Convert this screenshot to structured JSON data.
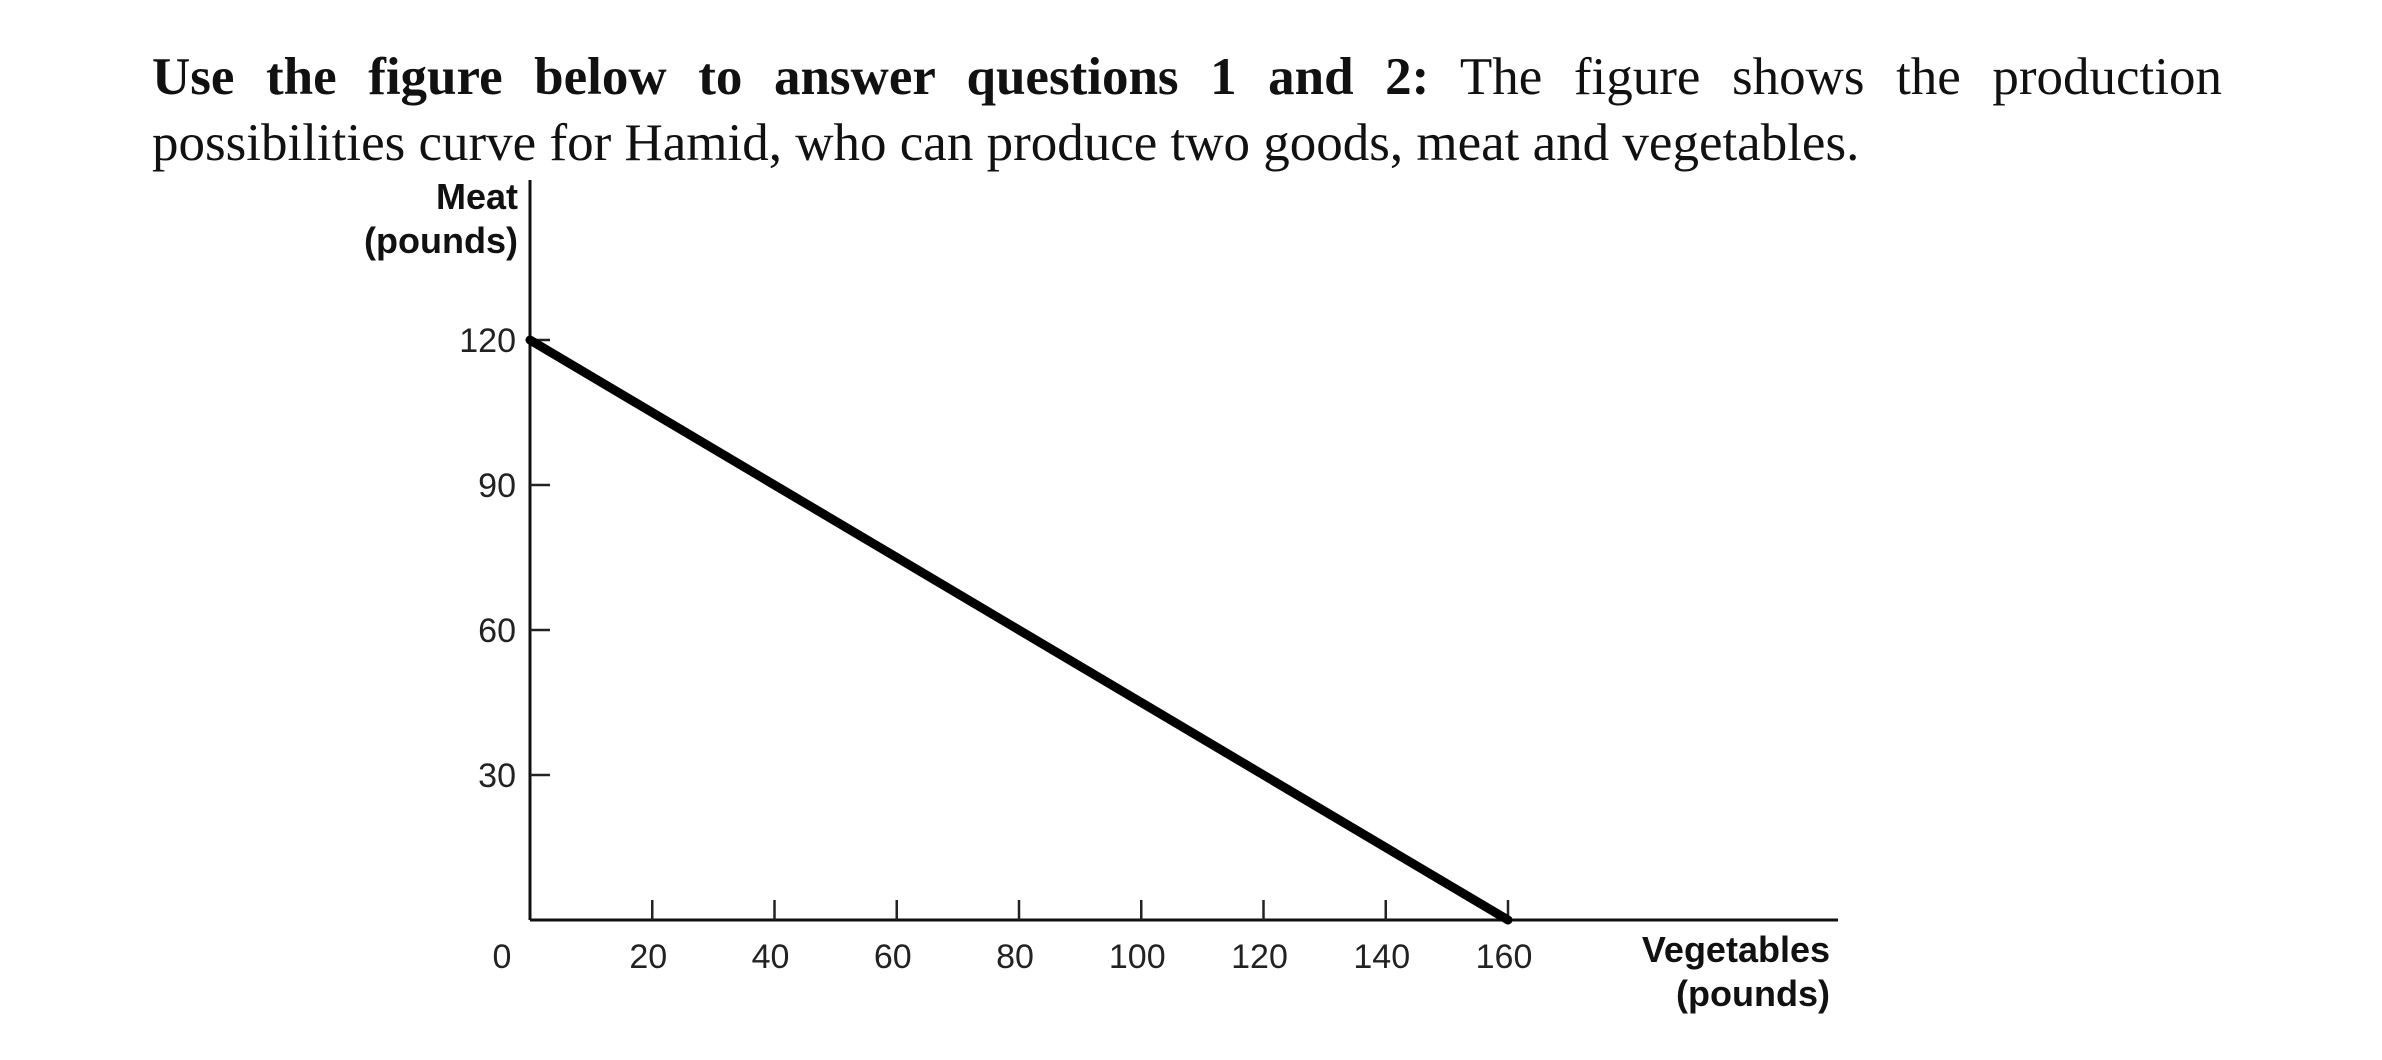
{
  "intro": {
    "bold_text": "Use the figure below to answer questions 1 and 2:",
    "body_text": " The figure shows the production possibilities curve for Hamid, who can produce two goods, meat and vegetables."
  },
  "chart_data": {
    "type": "line",
    "title": "",
    "ylabel_line1": "Meat",
    "ylabel_line2": "(pounds)",
    "xlabel_line1": "Vegetables",
    "xlabel_line2": "(pounds)",
    "origin_label": "0",
    "xlim": [
      0,
      160
    ],
    "ylim": [
      0,
      120
    ],
    "x_ticks": [
      20,
      40,
      60,
      80,
      100,
      120,
      140,
      160
    ],
    "x_tick_labels": [
      "20",
      "40",
      "60",
      "80",
      "100",
      "120",
      "140",
      "160"
    ],
    "y_ticks": [
      30,
      60,
      90,
      120
    ],
    "y_tick_labels": [
      "30",
      "60",
      "90",
      "120"
    ],
    "grid": false,
    "legend": "none",
    "series": [
      {
        "x": [
          0,
          160
        ],
        "y": [
          120,
          0
        ]
      }
    ],
    "line_color": "#000000"
  }
}
